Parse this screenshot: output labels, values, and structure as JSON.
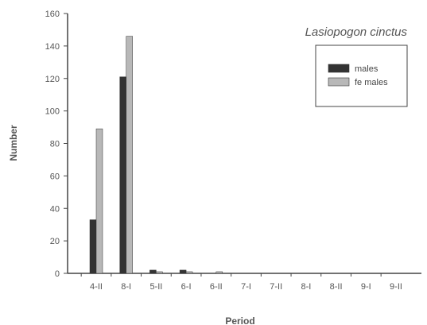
{
  "chart_data": {
    "type": "bar",
    "title": "Lasiopogon cinctus",
    "xlabel": "Period",
    "ylabel": "Number",
    "ylim": [
      0,
      160
    ],
    "yticks": [
      0,
      20,
      40,
      60,
      80,
      100,
      120,
      140,
      160
    ],
    "categories": [
      "4-II",
      "8-I",
      "5-II",
      "6-I",
      "6-II",
      "7-I",
      "7-II",
      "8-I",
      "8-II",
      "9-I",
      "9-II"
    ],
    "series": [
      {
        "name": "males",
        "color": "#333333",
        "values": [
          33,
          121,
          2,
          2,
          0,
          0,
          0,
          0,
          0,
          0,
          0
        ]
      },
      {
        "name": "fe males",
        "color": "#b8b8b8",
        "values": [
          89,
          146,
          1,
          1,
          1,
          0,
          0,
          0,
          0,
          0,
          0
        ]
      }
    ],
    "grid": false,
    "legend_position": "top-right"
  }
}
